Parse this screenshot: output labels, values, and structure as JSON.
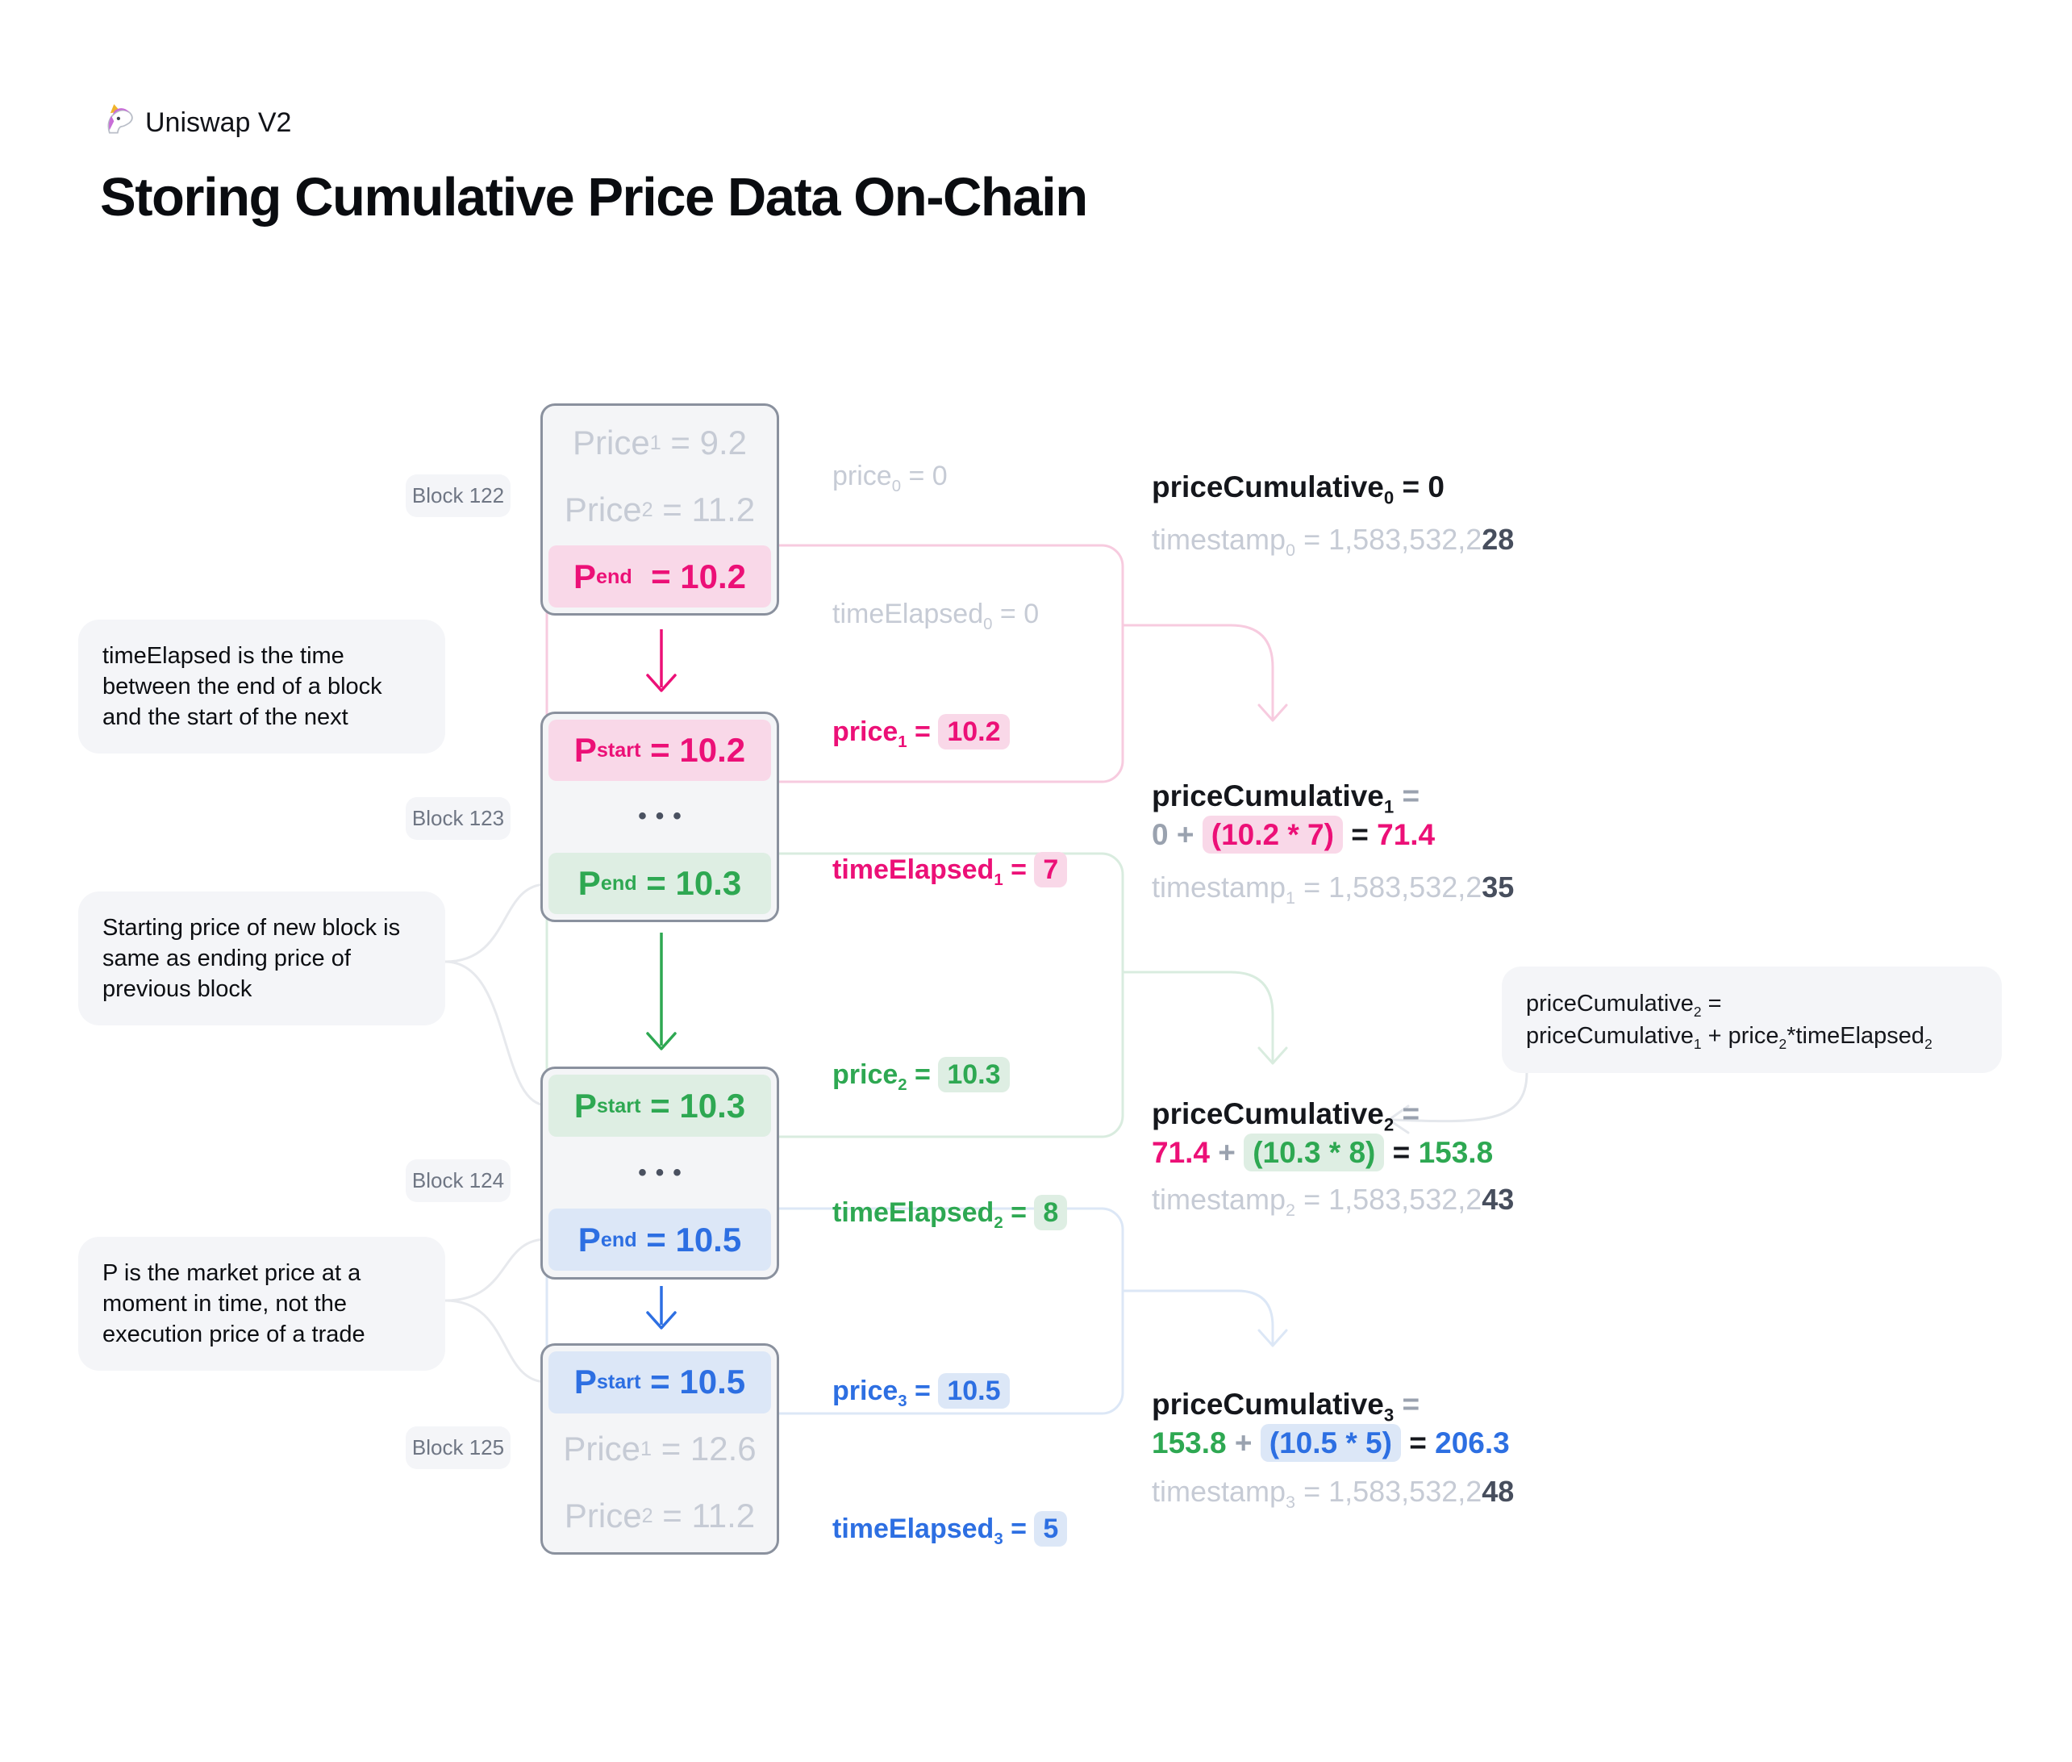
{
  "colors": {
    "pink": "#ec1077",
    "green": "#2ea852",
    "blue": "#2d6fe2",
    "faded_gray": "#c6cbd5",
    "mid_gray": "#9aa2af",
    "dark_gray": "#474e5d",
    "pink_bg": "#f9d8e8",
    "green_bg": "#deeee3",
    "blue_bg": "#dce7f7",
    "block_border": "#8a919e",
    "panel_bg": "#f4f5f8"
  },
  "header": {
    "brand": "Uniswap V2",
    "title": "Storing Cumulative Price Data On-Chain"
  },
  "callouts": {
    "time_elapsed": "timeElapsed is the time between the end of a block and the start of the next",
    "starting_price": "Starting price of new block is same as ending price of previous block",
    "market_price": "P is the market price at a moment in time, not the execution price of a trade"
  },
  "blocks": [
    {
      "label": "Block 122",
      "rows": [
        {
          "segments": [
            {
              "t": "Price",
              "c": "faded"
            },
            {
              "t": "1",
              "c": "faded",
              "sub": true
            },
            {
              "t": " = 9.2",
              "c": "faded"
            }
          ]
        },
        {
          "segments": [
            {
              "t": "Price",
              "c": "faded"
            },
            {
              "t": "2",
              "c": "faded",
              "sub": true
            },
            {
              "t": " = 11.2",
              "c": "faded"
            }
          ]
        },
        {
          "bg": "pink",
          "segments": [
            {
              "t": "P",
              "c": "pink",
              "b": true
            },
            {
              "t": "end",
              "c": "pink",
              "b": true,
              "sub": true
            },
            {
              "t": "  = 10.2",
              "c": "pink",
              "b": true
            }
          ]
        }
      ]
    },
    {
      "label": "Block 123",
      "rows": [
        {
          "bg": "pink",
          "segments": [
            {
              "t": "P",
              "c": "pink",
              "b": true
            },
            {
              "t": "start",
              "c": "pink",
              "b": true,
              "sub": true
            },
            {
              "t": " = 10.2",
              "c": "pink",
              "b": true
            }
          ]
        },
        {
          "dots": "•••"
        },
        {
          "bg": "green",
          "segments": [
            {
              "t": "P",
              "c": "green",
              "b": true
            },
            {
              "t": "end",
              "c": "green",
              "b": true,
              "sub": true
            },
            {
              "t": " = 10.3",
              "c": "green",
              "b": true
            }
          ]
        }
      ]
    },
    {
      "label": "Block 124",
      "rows": [
        {
          "bg": "green",
          "segments": [
            {
              "t": "P",
              "c": "green",
              "b": true
            },
            {
              "t": "start",
              "c": "green",
              "b": true,
              "sub": true
            },
            {
              "t": " = 10.3",
              "c": "green",
              "b": true
            }
          ]
        },
        {
          "dots": "•••"
        },
        {
          "bg": "blue",
          "segments": [
            {
              "t": "P",
              "c": "blue",
              "b": true
            },
            {
              "t": "end",
              "c": "blue",
              "b": true,
              "sub": true
            },
            {
              "t": " = 10.5",
              "c": "blue",
              "b": true
            }
          ]
        }
      ]
    },
    {
      "label": "Block 125",
      "rows": [
        {
          "bg": "blue",
          "segments": [
            {
              "t": "P",
              "c": "blue",
              "b": true
            },
            {
              "t": "start",
              "c": "blue",
              "b": true,
              "sub": true
            },
            {
              "t": " = 10.5",
              "c": "blue",
              "b": true
            }
          ]
        },
        {
          "segments": [
            {
              "t": "Price",
              "c": "faded"
            },
            {
              "t": "1",
              "c": "faded",
              "sub": true
            },
            {
              "t": " = 12.6",
              "c": "faded"
            }
          ]
        },
        {
          "segments": [
            {
              "t": "Price",
              "c": "faded"
            },
            {
              "t": "2",
              "c": "faded",
              "sub": true
            },
            {
              "t": " = 11.2",
              "c": "faded"
            }
          ]
        }
      ]
    }
  ],
  "transitions": [
    {
      "line1": [
        {
          "t": "price",
          "c": "faded"
        },
        {
          "t": "0",
          "c": "faded",
          "sub": true
        },
        {
          "t": " = 0",
          "c": "faded"
        }
      ],
      "line2": [
        {
          "t": "timeElapsed",
          "c": "faded"
        },
        {
          "t": "0",
          "c": "faded",
          "sub": true
        },
        {
          "t": " = 0",
          "c": "faded"
        }
      ]
    },
    {
      "line1": [
        {
          "t": "price",
          "c": "pink",
          "b": true
        },
        {
          "t": "1",
          "c": "pink",
          "b": true,
          "sub": true
        },
        {
          "t": " = ",
          "c": "pink",
          "b": true
        },
        {
          "t": "10.2",
          "c": "pink",
          "b": true,
          "bg": "pink"
        }
      ],
      "line2": [
        {
          "t": "timeElapsed",
          "c": "pink",
          "b": true
        },
        {
          "t": "1",
          "c": "pink",
          "b": true,
          "sub": true
        },
        {
          "t": " = ",
          "c": "pink",
          "b": true
        },
        {
          "t": "7",
          "c": "pink",
          "b": true,
          "bg": "pink"
        }
      ]
    },
    {
      "line1": [
        {
          "t": "price",
          "c": "green",
          "b": true
        },
        {
          "t": "2",
          "c": "green",
          "b": true,
          "sub": true
        },
        {
          "t": " = ",
          "c": "green",
          "b": true
        },
        {
          "t": "10.3",
          "c": "green",
          "b": true,
          "bg": "green"
        }
      ],
      "line2": [
        {
          "t": "timeElapsed",
          "c": "green",
          "b": true
        },
        {
          "t": "2",
          "c": "green",
          "b": true,
          "sub": true
        },
        {
          "t": " = ",
          "c": "green",
          "b": true
        },
        {
          "t": "8",
          "c": "green",
          "b": true,
          "bg": "green"
        }
      ]
    },
    {
      "line1": [
        {
          "t": "price",
          "c": "blue",
          "b": true
        },
        {
          "t": "3",
          "c": "blue",
          "b": true,
          "sub": true
        },
        {
          "t": " = ",
          "c": "blue",
          "b": true
        },
        {
          "t": "10.5",
          "c": "blue",
          "b": true,
          "bg": "blue"
        }
      ],
      "line2": [
        {
          "t": "timeElapsed",
          "c": "blue",
          "b": true
        },
        {
          "t": "3",
          "c": "blue",
          "b": true,
          "sub": true
        },
        {
          "t": " = ",
          "c": "blue",
          "b": true
        },
        {
          "t": "5",
          "c": "blue",
          "b": true,
          "bg": "blue"
        }
      ]
    }
  ],
  "results": [
    {
      "title": [
        {
          "t": "priceCumulative",
          "c": "black",
          "b": true
        },
        {
          "t": "0",
          "c": "black",
          "b": true,
          "sub": true
        },
        {
          "t": " = 0",
          "c": "black",
          "b": true
        }
      ],
      "timestamp": [
        {
          "t": "timestamp",
          "c": "faded"
        },
        {
          "t": "0",
          "c": "faded",
          "sub": true
        },
        {
          "t": " = 1,583,532,2",
          "c": "faded"
        },
        {
          "t": "28",
          "c": "dark",
          "b": true
        }
      ]
    },
    {
      "title": [
        {
          "t": "priceCumulative",
          "c": "black",
          "b": true
        },
        {
          "t": "1",
          "c": "black",
          "b": true,
          "sub": true
        },
        {
          "t": " =",
          "c": "gray",
          "b": true
        }
      ],
      "calc": [
        {
          "t": "0",
          "c": "gray",
          "b": true
        },
        {
          "t": " + ",
          "c": "gray",
          "b": true
        },
        {
          "t": "(10.2 * 7)",
          "c": "pink",
          "b": true,
          "bg": "pink"
        },
        {
          "t": " = ",
          "c": "black",
          "b": true
        },
        {
          "t": "71.4",
          "c": "pink",
          "b": true
        }
      ],
      "timestamp": [
        {
          "t": "timestamp",
          "c": "faded"
        },
        {
          "t": "1",
          "c": "faded",
          "sub": true
        },
        {
          "t": " = 1,583,532,2",
          "c": "faded"
        },
        {
          "t": "35",
          "c": "dark",
          "b": true
        }
      ]
    },
    {
      "title": [
        {
          "t": "priceCumulative",
          "c": "black",
          "b": true
        },
        {
          "t": "2",
          "c": "black",
          "b": true,
          "sub": true
        },
        {
          "t": " =",
          "c": "gray",
          "b": true
        }
      ],
      "calc": [
        {
          "t": "71.4",
          "c": "pink",
          "b": true
        },
        {
          "t": " + ",
          "c": "gray",
          "b": true
        },
        {
          "t": "(10.3 * 8)",
          "c": "green",
          "b": true,
          "bg": "green"
        },
        {
          "t": " = ",
          "c": "black",
          "b": true
        },
        {
          "t": "153.8",
          "c": "green",
          "b": true
        }
      ],
      "timestamp": [
        {
          "t": "timestamp",
          "c": "faded"
        },
        {
          "t": "2",
          "c": "faded",
          "sub": true
        },
        {
          "t": " = 1,583,532,2",
          "c": "faded"
        },
        {
          "t": "43",
          "c": "dark",
          "b": true
        }
      ]
    },
    {
      "title": [
        {
          "t": "priceCumulative",
          "c": "black",
          "b": true
        },
        {
          "t": "3",
          "c": "black",
          "b": true,
          "sub": true
        },
        {
          "t": " =",
          "c": "gray",
          "b": true
        }
      ],
      "calc": [
        {
          "t": "153.8",
          "c": "green",
          "b": true
        },
        {
          "t": " + ",
          "c": "gray",
          "b": true
        },
        {
          "t": "(10.5 * 5)",
          "c": "blue",
          "b": true,
          "bg": "blue"
        },
        {
          "t": " = ",
          "c": "black",
          "b": true
        },
        {
          "t": "206.3",
          "c": "blue",
          "b": true
        }
      ],
      "timestamp": [
        {
          "t": "timestamp",
          "c": "faded"
        },
        {
          "t": "3",
          "c": "faded",
          "sub": true
        },
        {
          "t": " = 1,583,532,2",
          "c": "faded"
        },
        {
          "t": "48",
          "c": "dark",
          "b": true
        }
      ]
    }
  ],
  "tooltip": {
    "line1": [
      {
        "t": "priceCumulative",
        "c": "black"
      },
      {
        "t": "2",
        "c": "black",
        "sub": true
      },
      {
        "t": " =",
        "c": "black"
      }
    ],
    "line2": [
      {
        "t": "priceCumulative",
        "c": "black"
      },
      {
        "t": "1",
        "c": "black",
        "sub": true
      },
      {
        "t": " + price",
        "c": "black"
      },
      {
        "t": "2",
        "c": "black",
        "sub": true
      },
      {
        "t": "*timeElapsed",
        "c": "black"
      },
      {
        "t": "2",
        "c": "black",
        "sub": true
      }
    ]
  }
}
